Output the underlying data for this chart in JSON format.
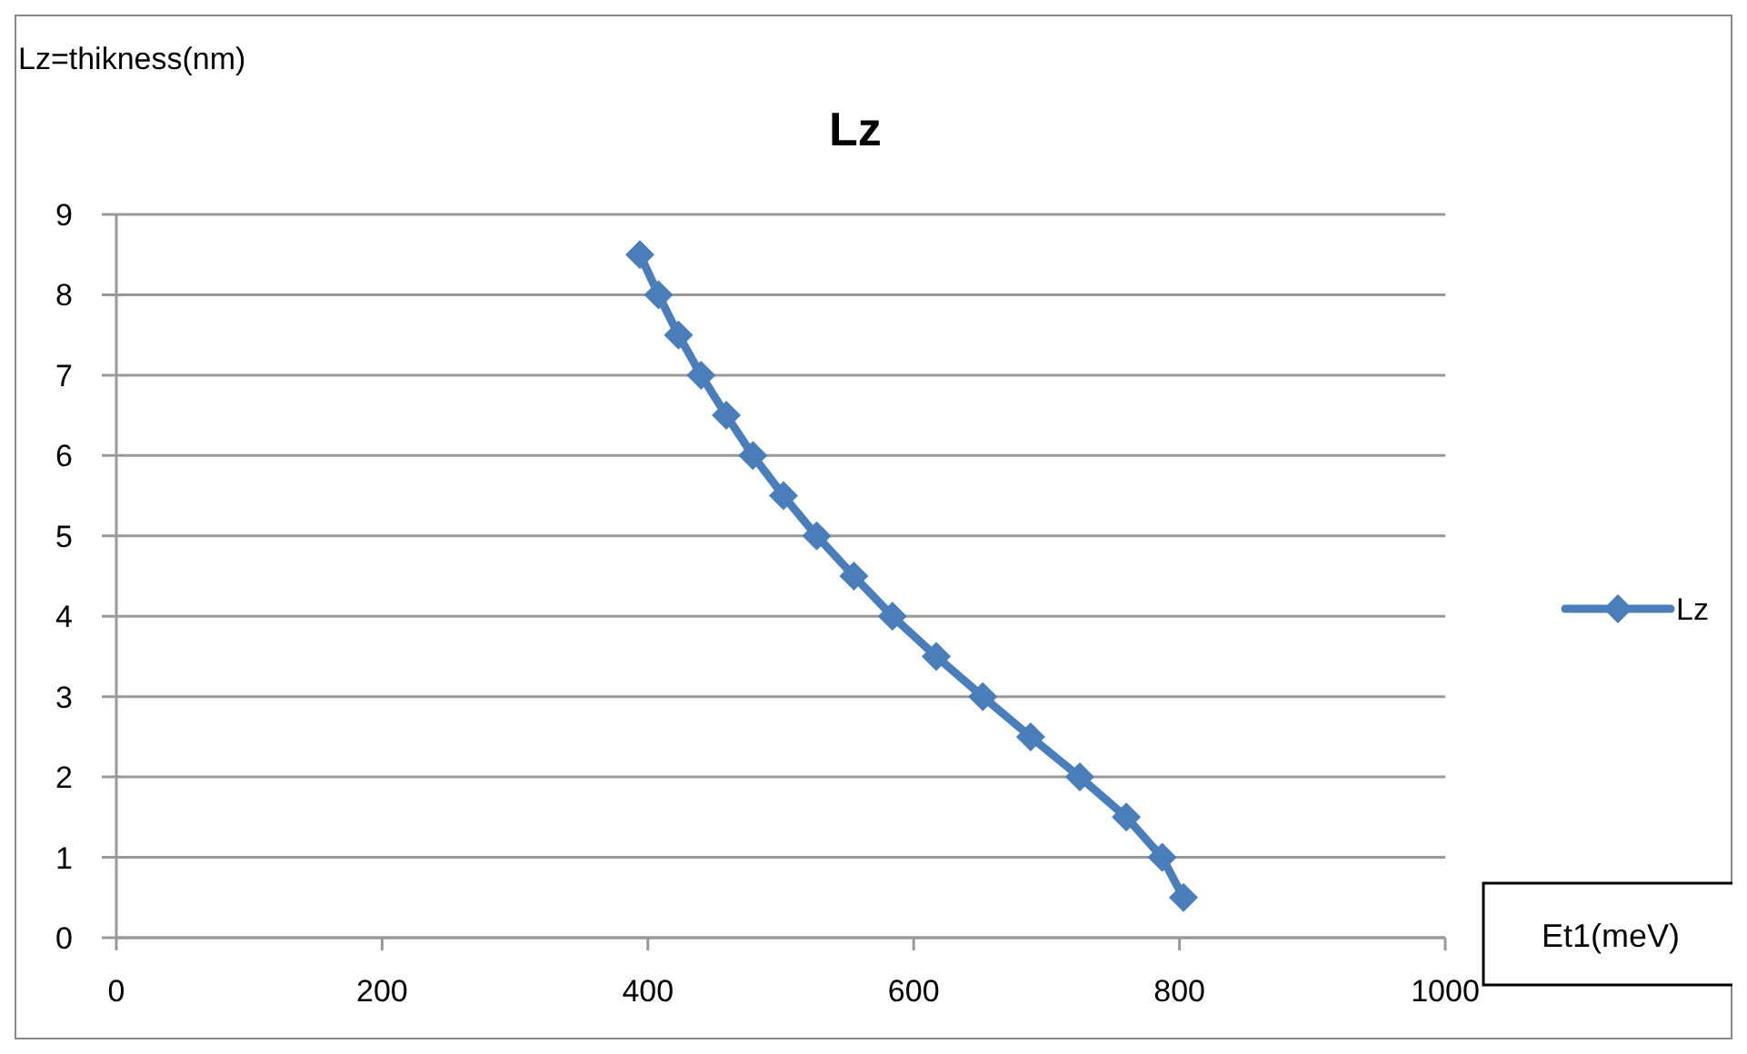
{
  "chart_data": {
    "type": "line",
    "title": "Lz",
    "xlabel": "Et1(meV)",
    "ylabel": "Lz=thikness(nm)",
    "x": [
      394,
      408,
      423,
      440,
      459,
      479,
      502,
      527,
      555,
      584,
      617,
      652,
      688,
      725,
      760,
      787,
      803
    ],
    "series": [
      {
        "name": "Lz",
        "color": "#4a7ebb",
        "values": [
          8.5,
          8,
          7.5,
          7,
          6.5,
          6,
          5.5,
          5,
          4.5,
          4,
          3.5,
          3,
          2.5,
          2,
          1.5,
          1,
          0.5
        ]
      }
    ],
    "xlim": [
      0,
      1000
    ],
    "xticks": [
      0,
      200,
      400,
      600,
      800,
      1000
    ],
    "ylim": [
      0,
      9
    ],
    "yticks": [
      0,
      1,
      2,
      3,
      4,
      5,
      6,
      7,
      8,
      9
    ],
    "grid": "y",
    "legend": "right",
    "marker": "diamond",
    "line_style": "solid"
  }
}
